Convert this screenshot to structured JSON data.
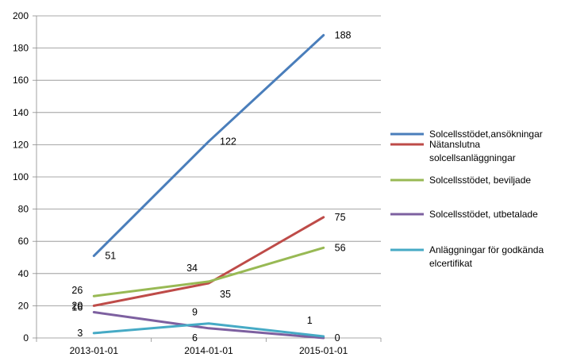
{
  "chart_data": {
    "type": "line",
    "title": "",
    "xlabel": "",
    "ylabel": "",
    "categories": [
      "2013-01-01",
      "2014-01-01",
      "2015-01-01"
    ],
    "ylim": [
      0,
      200
    ],
    "yticks": [
      0,
      20,
      40,
      60,
      80,
      100,
      120,
      140,
      160,
      180,
      200
    ],
    "grid": "horizontal",
    "legend_position": "right",
    "series": [
      {
        "name": "Solcellsstödet,ansökningar",
        "name_lines": [
          "Solcellsstödet,ansökningar"
        ],
        "color": "#4A7EBB",
        "values": [
          51,
          122,
          188
        ]
      },
      {
        "name": "Nätanslutna solcellsanläggningar",
        "name_lines": [
          "Nätanslutna",
          "solcellsanläggningar"
        ],
        "color": "#BE4B48",
        "values": [
          20,
          34,
          75
        ]
      },
      {
        "name": "Solcellsstödet, beviljade",
        "name_lines": [
          "Solcellsstödet, beviljade"
        ],
        "color": "#98B954",
        "values": [
          26,
          35,
          56
        ]
      },
      {
        "name": "Solcellsstödet, utbetalade",
        "name_lines": [
          "Solcellsstödet, utbetalade"
        ],
        "color": "#7D60A0",
        "values": [
          16,
          6,
          0
        ]
      },
      {
        "name": "Anläggningar för godkända elcertifikat",
        "name_lines": [
          "Anläggningar för godkända",
          "elcertifikat"
        ],
        "color": "#46AAC5",
        "values": [
          3,
          9,
          1
        ]
      }
    ]
  }
}
